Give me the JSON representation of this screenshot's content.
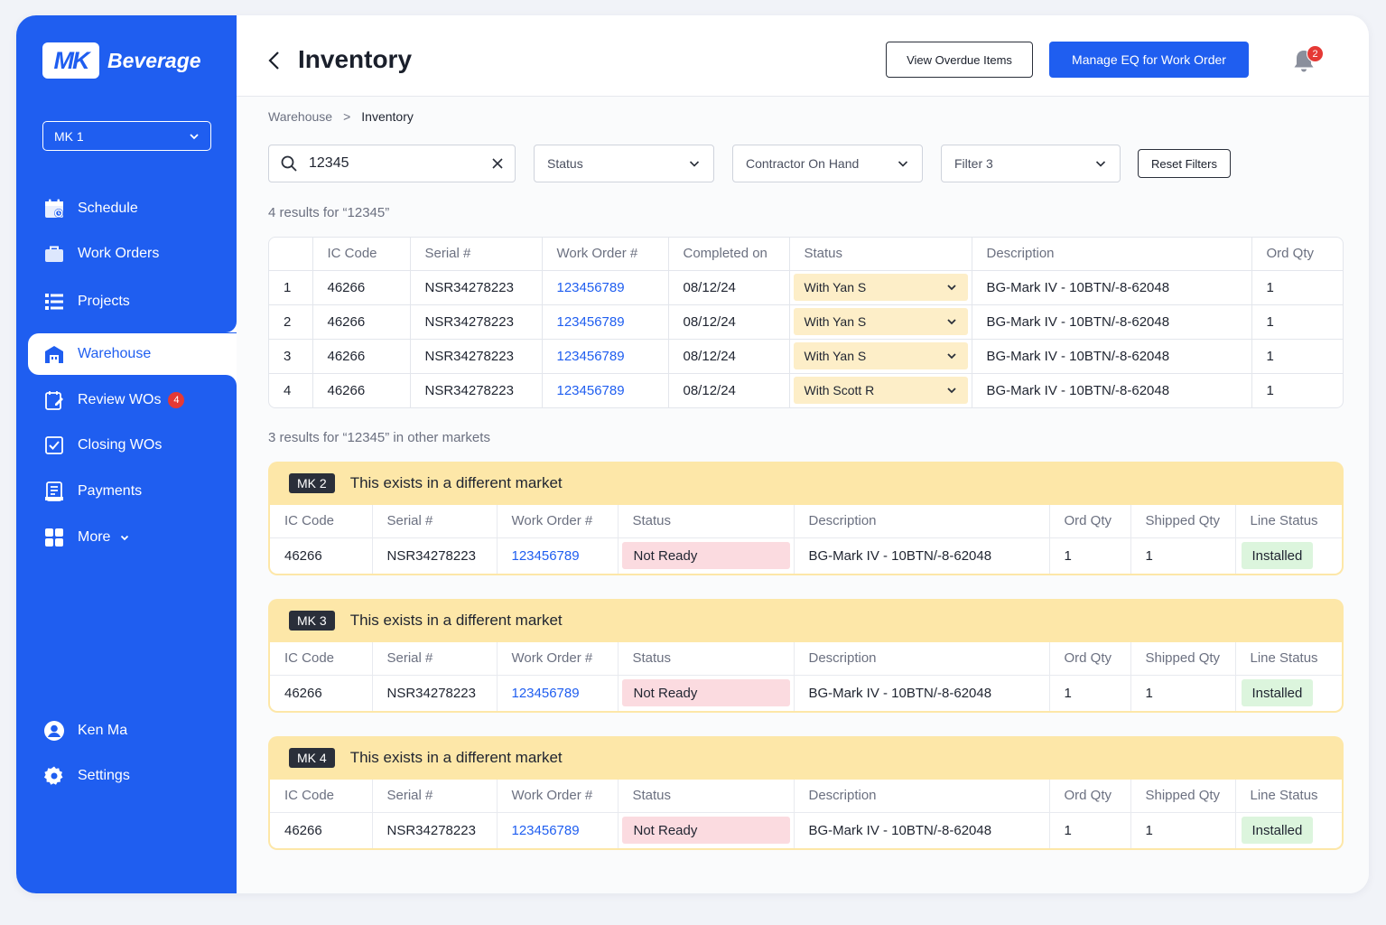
{
  "brand": {
    "logo_mark": "MK",
    "name": "Beverage"
  },
  "market_select": {
    "value": "MK 1"
  },
  "sidebar": {
    "items": [
      {
        "label": "Schedule",
        "icon": "calendar-icon"
      },
      {
        "label": "Work Orders",
        "icon": "briefcase-icon"
      },
      {
        "label": "Projects",
        "icon": "list-icon"
      },
      {
        "label": "Warehouse",
        "icon": "warehouse-icon",
        "active": true
      },
      {
        "label": "Review WOs",
        "icon": "review-icon",
        "badge": "4"
      },
      {
        "label": "Closing WOs",
        "icon": "checkbox-icon"
      },
      {
        "label": "Payments",
        "icon": "receipt-icon"
      },
      {
        "label": "More",
        "icon": "grid-icon"
      }
    ],
    "user": {
      "label": "Ken Ma",
      "icon": "user-icon"
    },
    "settings": {
      "label": "Settings",
      "icon": "gear-icon"
    }
  },
  "header": {
    "title": "Inventory",
    "btn_overdue": "View Overdue Items",
    "btn_manage": "Manage EQ for Work Order",
    "notification_count": "2"
  },
  "breadcrumb": {
    "parent": "Warehouse",
    "sep": ">",
    "current": "Inventory"
  },
  "filters": {
    "search_value": "12345",
    "status": "Status",
    "contractor": "Contractor On Hand",
    "filter3": "Filter 3",
    "reset": "Reset Filters"
  },
  "results_text": "4 results for “12345”",
  "main_table": {
    "headers": [
      "",
      "IC Code",
      "Serial #",
      "Work Order #",
      "Completed on",
      "Status",
      "Description",
      "Ord Qty"
    ],
    "rows": [
      {
        "n": "1",
        "ic": "46266",
        "serial": "NSR34278223",
        "wo": "123456789",
        "completed": "08/12/24",
        "status": "With Yan S",
        "desc": "BG-Mark IV - 10BTN/-8-62048",
        "qty": "1"
      },
      {
        "n": "2",
        "ic": "46266",
        "serial": "NSR34278223",
        "wo": "123456789",
        "completed": "08/12/24",
        "status": "With Yan S",
        "desc": "BG-Mark IV - 10BTN/-8-62048",
        "qty": "1"
      },
      {
        "n": "3",
        "ic": "46266",
        "serial": "NSR34278223",
        "wo": "123456789",
        "completed": "08/12/24",
        "status": "With Yan S",
        "desc": "BG-Mark IV - 10BTN/-8-62048",
        "qty": "1"
      },
      {
        "n": "4",
        "ic": "46266",
        "serial": "NSR34278223",
        "wo": "123456789",
        "completed": "08/12/24",
        "status": "With Scott R",
        "desc": "BG-Mark IV - 10BTN/-8-62048",
        "qty": "1"
      }
    ]
  },
  "other_text": "3 results for “12345” in other markets",
  "other_markets": {
    "headers": [
      "IC Code",
      "Serial #",
      "Work Order #",
      "Status",
      "Description",
      "Ord Qty",
      "Shipped Qty",
      "Line Status"
    ],
    "cards": [
      {
        "tag": "MK 2",
        "message": "This exists in a different market",
        "row": {
          "ic": "46266",
          "serial": "NSR34278223",
          "wo": "123456789",
          "status": "Not Ready",
          "desc": "BG-Mark IV - 10BTN/-8-62048",
          "ord": "1",
          "shipped": "1",
          "line": "Installed"
        }
      },
      {
        "tag": "MK 3",
        "message": "This exists in a different market",
        "row": {
          "ic": "46266",
          "serial": "NSR34278223",
          "wo": "123456789",
          "status": "Not Ready",
          "desc": "BG-Mark IV - 10BTN/-8-62048",
          "ord": "1",
          "shipped": "1",
          "line": "Installed"
        }
      },
      {
        "tag": "MK 4",
        "message": "This exists in a different market",
        "row": {
          "ic": "46266",
          "serial": "NSR34278223",
          "wo": "123456789",
          "status": "Not Ready",
          "desc": "BG-Mark IV - 10BTN/-8-62048",
          "ord": "1",
          "shipped": "1",
          "line": "Installed"
        }
      }
    ]
  },
  "colors": {
    "primary": "#1f5ef0",
    "warning_bg": "#fde7a8",
    "status_bg": "#fdeec8",
    "not_ready_bg": "#fbdbe0",
    "installed_bg": "#dcf5dd",
    "badge": "#e53935"
  }
}
